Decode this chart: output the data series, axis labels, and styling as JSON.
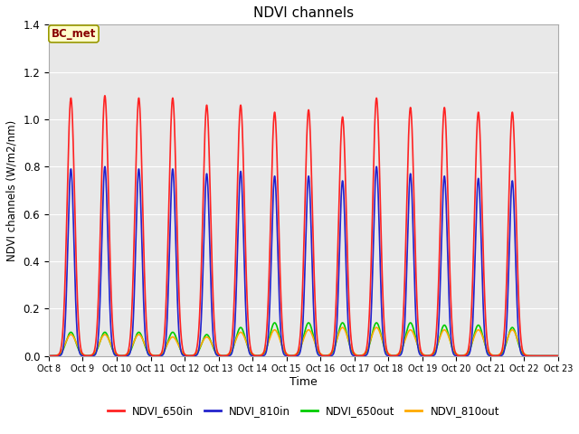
{
  "title": "NDVI channels",
  "xlabel": "Time",
  "ylabel": "NDVI channels (W/m2/nm)",
  "ylim": [
    0,
    1.4
  ],
  "fig_bg_color": "#ffffff",
  "plot_bg_color": "#e8e8e8",
  "annotation_label": "BC_met",
  "annotation_face_color": "#ffffcc",
  "annotation_edge_color": "#999900",
  "annotation_text_color": "#880000",
  "xtick_labels": [
    "Oct 8",
    "Oct 9",
    "Oct 10",
    "Oct 11",
    "Oct 12",
    "Oct 13",
    "Oct 14",
    "Oct 15",
    "Oct 16",
    "Oct 17",
    "Oct 18",
    "Oct 19",
    "Oct 20",
    "Oct 21",
    "Oct 22",
    "Oct 23"
  ],
  "series_650in_color": "#ff2222",
  "series_810in_color": "#2222cc",
  "series_650out_color": "#00cc00",
  "series_810out_color": "#ffaa00",
  "peaks_650in": [
    1.09,
    1.1,
    1.09,
    1.09,
    1.06,
    1.06,
    1.03,
    1.04,
    1.01,
    1.09,
    1.05,
    1.05,
    1.03,
    1.03
  ],
  "peaks_810in": [
    0.79,
    0.8,
    0.79,
    0.79,
    0.77,
    0.78,
    0.76,
    0.76,
    0.74,
    0.8,
    0.77,
    0.76,
    0.75,
    0.74
  ],
  "peaks_650out": [
    0.1,
    0.1,
    0.1,
    0.1,
    0.09,
    0.12,
    0.14,
    0.14,
    0.14,
    0.14,
    0.14,
    0.13,
    0.13,
    0.12
  ],
  "peaks_810out": [
    0.09,
    0.09,
    0.09,
    0.08,
    0.08,
    0.1,
    0.11,
    0.11,
    0.12,
    0.12,
    0.11,
    0.11,
    0.11,
    0.11
  ],
  "legend_entries": [
    "NDVI_650in",
    "NDVI_810in",
    "NDVI_650out",
    "NDVI_810out"
  ],
  "legend_colors": [
    "#ff2222",
    "#2222cc",
    "#00cc00",
    "#ffaa00"
  ]
}
